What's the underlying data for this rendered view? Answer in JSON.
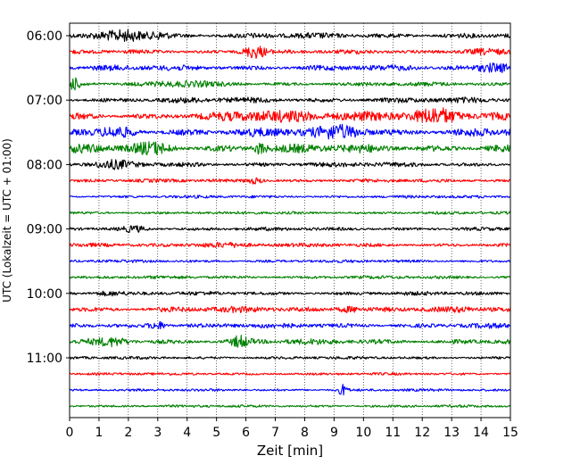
{
  "chart_data": {
    "type": "line",
    "title": "",
    "xlabel": "Zeit  [min]",
    "ylabel": "UTC (Lokalzeit = UTC + 01:00)",
    "xlim": [
      0,
      15
    ],
    "x_ticks": [
      0,
      1,
      2,
      3,
      4,
      5,
      6,
      7,
      8,
      9,
      10,
      11,
      12,
      13,
      14,
      15
    ],
    "y_tick_labels": [
      "06:00",
      "07:00",
      "08:00",
      "09:00",
      "10:00",
      "11:00"
    ],
    "trace_count": 24,
    "minutes_per_trace": 15,
    "color_cycle": [
      "#000000",
      "#ff0000",
      "#0000ff",
      "#008000"
    ],
    "grid": {
      "x": true,
      "style": "dotted"
    },
    "legend": "none"
  }
}
